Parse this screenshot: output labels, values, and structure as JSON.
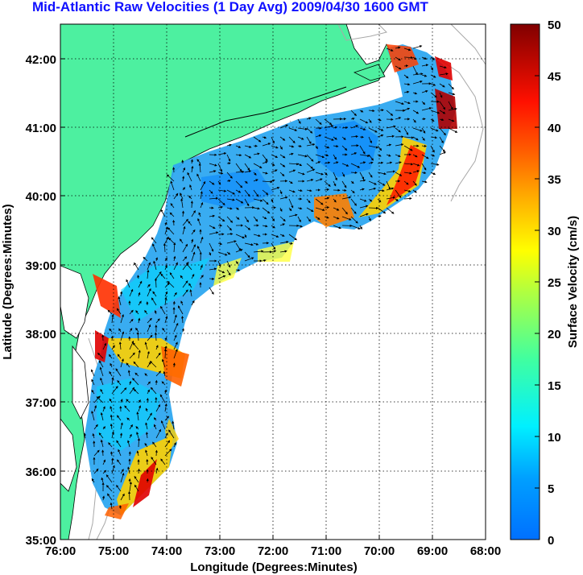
{
  "title": "Mid-Atlantic Raw Velocities (1 Day Avg) 2009/04/30 1600 GMT",
  "xaxis": {
    "label": "Longitude (Degrees:Minutes)",
    "ticks": [
      "76:00",
      "75:00",
      "74:00",
      "73:00",
      "72:00",
      "71:00",
      "70:00",
      "69:00",
      "68:00"
    ]
  },
  "yaxis": {
    "label": "Latitude (Degrees:Minutes)",
    "ticks": [
      "42:00",
      "41:00",
      "40:00",
      "39:00",
      "38:00",
      "37:00",
      "36:00",
      "35:00"
    ]
  },
  "colorbar": {
    "label": "Surface Velocity (cm/s)",
    "ticks": [
      "50",
      "45",
      "40",
      "35",
      "30",
      "25",
      "20",
      "15",
      "10",
      "5",
      "0"
    ],
    "min": 0,
    "max": 50
  },
  "colors": {
    "land": "#4df0a0",
    "title": "#1010ff",
    "grid": "#000000"
  }
}
